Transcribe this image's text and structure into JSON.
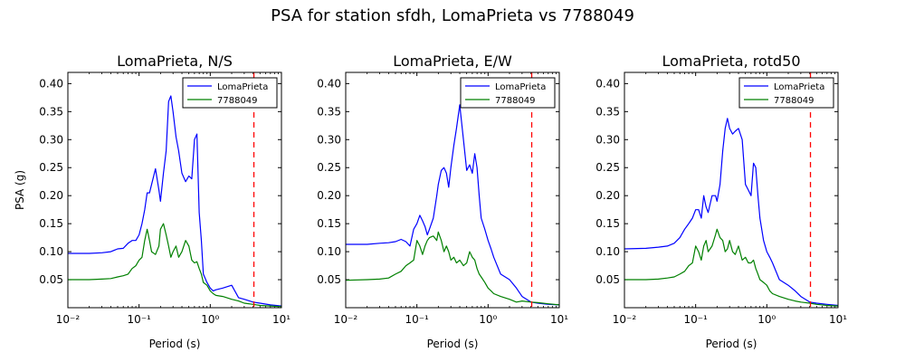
{
  "figure": {
    "title": "PSA for station sfdh, LomaPrieta vs 7788049"
  },
  "chart_data": [
    {
      "type": "line",
      "title": "LomaPrieta, N/S",
      "xlabel": "Period (s)",
      "ylabel": "PSA (g)",
      "xscale": "log",
      "xlim": [
        0.01,
        10
      ],
      "ylim": [
        0.0,
        0.42
      ],
      "xticks": [
        0.01,
        0.1,
        1,
        10
      ],
      "xtick_labels": [
        "10⁻²",
        "10⁻¹",
        "10⁰",
        "10¹"
      ],
      "yticks": [
        0.05,
        0.1,
        0.15,
        0.2,
        0.25,
        0.3,
        0.35,
        0.4
      ],
      "ytick_labels": [
        "0.05",
        "0.10",
        "0.15",
        "0.20",
        "0.25",
        "0.30",
        "0.35",
        "0.40"
      ],
      "grid": false,
      "legend": "top-right",
      "vline": {
        "x": 4.1,
        "color": "#ff0000",
        "style": "dashed"
      },
      "series": [
        {
          "name": "LomaPrieta",
          "color": "#0000ff",
          "x": [
            0.01,
            0.02,
            0.03,
            0.04,
            0.05,
            0.06,
            0.07,
            0.08,
            0.09,
            0.1,
            0.11,
            0.12,
            0.13,
            0.14,
            0.15,
            0.17,
            0.19,
            0.2,
            0.22,
            0.24,
            0.26,
            0.28,
            0.3,
            0.33,
            0.36,
            0.4,
            0.45,
            0.5,
            0.55,
            0.6,
            0.65,
            0.7,
            0.75,
            0.8,
            0.9,
            1.0,
            1.1,
            1.2,
            1.5,
            2.0,
            2.5,
            3.0,
            4.0,
            5.0,
            7.0,
            10.0
          ],
          "values": [
            0.097,
            0.097,
            0.098,
            0.1,
            0.105,
            0.106,
            0.115,
            0.12,
            0.12,
            0.13,
            0.15,
            0.175,
            0.205,
            0.205,
            0.22,
            0.248,
            0.21,
            0.19,
            0.24,
            0.28,
            0.368,
            0.378,
            0.35,
            0.305,
            0.28,
            0.24,
            0.225,
            0.235,
            0.23,
            0.3,
            0.31,
            0.17,
            0.12,
            0.06,
            0.045,
            0.035,
            0.03,
            0.032,
            0.035,
            0.04,
            0.018,
            0.015,
            0.01,
            0.008,
            0.005,
            0.003
          ]
        },
        {
          "name": "7788049",
          "color": "#008000",
          "x": [
            0.01,
            0.02,
            0.03,
            0.04,
            0.05,
            0.06,
            0.07,
            0.08,
            0.09,
            0.1,
            0.11,
            0.12,
            0.13,
            0.14,
            0.15,
            0.17,
            0.19,
            0.2,
            0.22,
            0.24,
            0.26,
            0.28,
            0.3,
            0.33,
            0.36,
            0.4,
            0.45,
            0.5,
            0.55,
            0.6,
            0.65,
            0.7,
            0.75,
            0.8,
            0.9,
            1.0,
            1.1,
            1.2,
            1.5,
            2.0,
            2.5,
            3.0,
            4.0,
            5.0,
            7.0,
            10.0
          ],
          "values": [
            0.05,
            0.05,
            0.051,
            0.052,
            0.055,
            0.057,
            0.06,
            0.07,
            0.075,
            0.085,
            0.09,
            0.12,
            0.14,
            0.12,
            0.1,
            0.095,
            0.11,
            0.14,
            0.15,
            0.13,
            0.11,
            0.09,
            0.1,
            0.11,
            0.09,
            0.1,
            0.12,
            0.11,
            0.085,
            0.08,
            0.082,
            0.07,
            0.06,
            0.045,
            0.04,
            0.03,
            0.025,
            0.022,
            0.02,
            0.015,
            0.012,
            0.008,
            0.006,
            0.004,
            0.003,
            0.002
          ]
        }
      ]
    },
    {
      "type": "line",
      "title": "LomaPrieta, E/W",
      "xlabel": "Period (s)",
      "ylabel": "",
      "xscale": "log",
      "xlim": [
        0.01,
        10
      ],
      "ylim": [
        0.0,
        0.42
      ],
      "xticks": [
        0.01,
        0.1,
        1,
        10
      ],
      "xtick_labels": [
        "10⁻²",
        "10⁻¹",
        "10⁰",
        "10¹"
      ],
      "yticks": [
        0.05,
        0.1,
        0.15,
        0.2,
        0.25,
        0.3,
        0.35,
        0.4
      ],
      "ytick_labels": [
        "0.05",
        "0.10",
        "0.15",
        "0.20",
        "0.25",
        "0.30",
        "0.35",
        "0.40"
      ],
      "grid": false,
      "legend": "top-right",
      "vline": {
        "x": 4.1,
        "color": "#ff0000",
        "style": "dashed"
      },
      "series": [
        {
          "name": "LomaPrieta",
          "color": "#0000ff",
          "x": [
            0.01,
            0.02,
            0.03,
            0.04,
            0.05,
            0.06,
            0.07,
            0.08,
            0.09,
            0.1,
            0.11,
            0.12,
            0.13,
            0.14,
            0.15,
            0.17,
            0.19,
            0.2,
            0.22,
            0.24,
            0.26,
            0.28,
            0.3,
            0.33,
            0.36,
            0.4,
            0.45,
            0.5,
            0.55,
            0.6,
            0.65,
            0.7,
            0.75,
            0.8,
            0.9,
            1.0,
            1.1,
            1.2,
            1.5,
            2.0,
            2.5,
            3.0,
            4.0,
            5.0,
            7.0,
            10.0
          ],
          "values": [
            0.113,
            0.113,
            0.115,
            0.116,
            0.118,
            0.122,
            0.118,
            0.11,
            0.14,
            0.15,
            0.165,
            0.155,
            0.145,
            0.13,
            0.14,
            0.16,
            0.2,
            0.22,
            0.245,
            0.25,
            0.24,
            0.215,
            0.25,
            0.29,
            0.32,
            0.362,
            0.3,
            0.245,
            0.255,
            0.24,
            0.275,
            0.25,
            0.2,
            0.16,
            0.14,
            0.12,
            0.105,
            0.09,
            0.06,
            0.05,
            0.035,
            0.02,
            0.01,
            0.008,
            0.006,
            0.005
          ]
        },
        {
          "name": "7788049",
          "color": "#008000",
          "x": [
            0.01,
            0.02,
            0.03,
            0.04,
            0.05,
            0.06,
            0.07,
            0.08,
            0.09,
            0.1,
            0.11,
            0.12,
            0.13,
            0.14,
            0.15,
            0.17,
            0.19,
            0.2,
            0.22,
            0.24,
            0.26,
            0.28,
            0.3,
            0.33,
            0.36,
            0.4,
            0.45,
            0.5,
            0.55,
            0.6,
            0.65,
            0.7,
            0.75,
            0.8,
            0.9,
            1.0,
            1.1,
            1.2,
            1.5,
            2.0,
            2.5,
            3.0,
            4.0,
            5.0,
            7.0,
            10.0
          ],
          "values": [
            0.049,
            0.05,
            0.051,
            0.053,
            0.06,
            0.065,
            0.075,
            0.08,
            0.085,
            0.12,
            0.11,
            0.095,
            0.11,
            0.12,
            0.125,
            0.128,
            0.12,
            0.135,
            0.12,
            0.1,
            0.11,
            0.1,
            0.085,
            0.09,
            0.08,
            0.085,
            0.075,
            0.08,
            0.1,
            0.09,
            0.085,
            0.07,
            0.06,
            0.055,
            0.045,
            0.035,
            0.03,
            0.025,
            0.02,
            0.015,
            0.01,
            0.012,
            0.01,
            0.009,
            0.007,
            0.005
          ]
        }
      ]
    },
    {
      "type": "line",
      "title": "LomaPrieta, rotd50",
      "xlabel": "Period (s)",
      "ylabel": "",
      "xscale": "log",
      "xlim": [
        0.01,
        10
      ],
      "ylim": [
        0.0,
        0.42
      ],
      "xticks": [
        0.01,
        0.1,
        1,
        10
      ],
      "xtick_labels": [
        "10⁻²",
        "10⁻¹",
        "10⁰",
        "10¹"
      ],
      "yticks": [
        0.05,
        0.1,
        0.15,
        0.2,
        0.25,
        0.3,
        0.35,
        0.4
      ],
      "ytick_labels": [
        "0.05",
        "0.10",
        "0.15",
        "0.20",
        "0.25",
        "0.30",
        "0.35",
        "0.40"
      ],
      "grid": false,
      "legend": "top-right",
      "vline": {
        "x": 4.1,
        "color": "#ff0000",
        "style": "dashed"
      },
      "series": [
        {
          "name": "LomaPrieta",
          "color": "#0000ff",
          "x": [
            0.01,
            0.02,
            0.03,
            0.04,
            0.05,
            0.06,
            0.07,
            0.08,
            0.09,
            0.1,
            0.11,
            0.12,
            0.13,
            0.14,
            0.15,
            0.17,
            0.19,
            0.2,
            0.22,
            0.24,
            0.26,
            0.28,
            0.3,
            0.33,
            0.36,
            0.4,
            0.45,
            0.5,
            0.55,
            0.6,
            0.65,
            0.7,
            0.75,
            0.8,
            0.9,
            1.0,
            1.1,
            1.2,
            1.5,
            2.0,
            2.5,
            3.0,
            4.0,
            5.0,
            7.0,
            10.0
          ],
          "values": [
            0.105,
            0.106,
            0.108,
            0.11,
            0.115,
            0.125,
            0.14,
            0.15,
            0.16,
            0.175,
            0.175,
            0.16,
            0.2,
            0.18,
            0.17,
            0.2,
            0.2,
            0.19,
            0.22,
            0.28,
            0.32,
            0.338,
            0.32,
            0.31,
            0.315,
            0.32,
            0.3,
            0.22,
            0.21,
            0.2,
            0.258,
            0.25,
            0.2,
            0.16,
            0.12,
            0.1,
            0.09,
            0.08,
            0.05,
            0.04,
            0.03,
            0.02,
            0.01,
            0.008,
            0.006,
            0.004
          ]
        },
        {
          "name": "7788049",
          "color": "#008000",
          "x": [
            0.01,
            0.02,
            0.03,
            0.04,
            0.05,
            0.06,
            0.07,
            0.08,
            0.09,
            0.1,
            0.11,
            0.12,
            0.13,
            0.14,
            0.15,
            0.17,
            0.19,
            0.2,
            0.22,
            0.24,
            0.26,
            0.28,
            0.3,
            0.33,
            0.36,
            0.4,
            0.45,
            0.5,
            0.55,
            0.6,
            0.65,
            0.7,
            0.75,
            0.8,
            0.9,
            1.0,
            1.1,
            1.2,
            1.5,
            2.0,
            2.5,
            3.0,
            4.0,
            5.0,
            7.0,
            10.0
          ],
          "values": [
            0.05,
            0.05,
            0.051,
            0.053,
            0.055,
            0.06,
            0.065,
            0.075,
            0.08,
            0.11,
            0.1,
            0.085,
            0.11,
            0.12,
            0.1,
            0.11,
            0.13,
            0.14,
            0.125,
            0.12,
            0.1,
            0.105,
            0.12,
            0.1,
            0.095,
            0.11,
            0.085,
            0.09,
            0.08,
            0.08,
            0.085,
            0.07,
            0.06,
            0.05,
            0.045,
            0.04,
            0.03,
            0.025,
            0.02,
            0.015,
            0.012,
            0.01,
            0.008,
            0.006,
            0.004,
            0.003
          ]
        }
      ]
    }
  ]
}
